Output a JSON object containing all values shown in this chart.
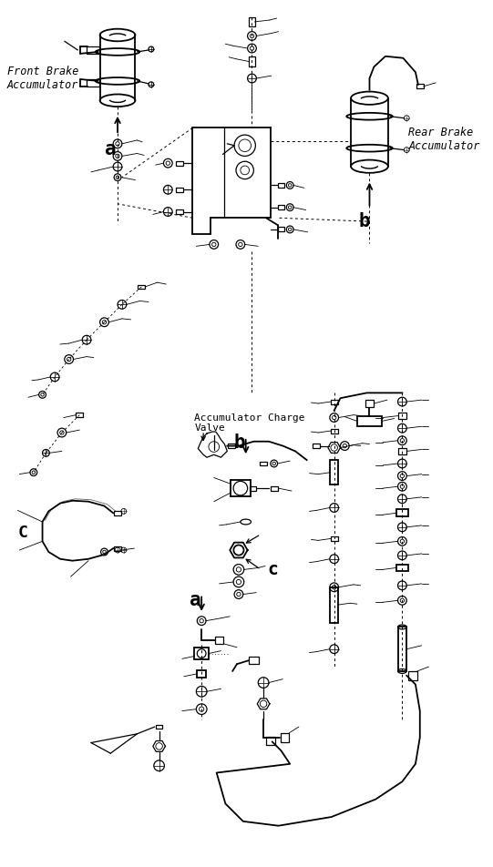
{
  "bg_color": "#ffffff",
  "line_color": "#000000",
  "text_color": "#000000",
  "figsize": [
    5.41,
    9.52
  ],
  "dpi": 100,
  "labels": {
    "front_brake": "Front Brake\nAccumulator",
    "rear_brake": "Rear Brake\nAccumulator",
    "accum_charge": "Accumulator Charge\nValve",
    "a_top": "a",
    "b_top": "b",
    "b_mid": "b",
    "c_left": "c",
    "c_mid": "c",
    "a_bot": "a"
  }
}
